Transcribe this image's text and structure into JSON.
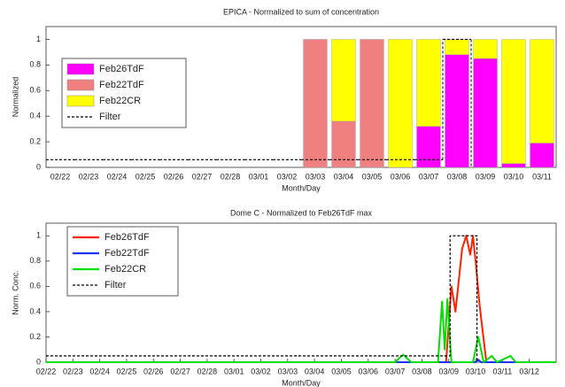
{
  "chart_data": [
    {
      "type": "bar",
      "stacked": true,
      "title": "EPICA - Normalized to sum of concentration",
      "xlabel": "Month/Day",
      "ylabel": "Normalized",
      "categories": [
        "02/22",
        "02/23",
        "02/24",
        "02/25",
        "02/26",
        "02/27",
        "02/28",
        "03/01",
        "03/02",
        "03/03",
        "03/04",
        "03/05",
        "03/06",
        "03/07",
        "03/08",
        "03/09",
        "03/10",
        "03/11"
      ],
      "series": [
        {
          "name": "Feb26TdF",
          "color": "#ff00ff",
          "values": [
            0,
            0,
            0,
            0,
            0,
            0,
            0,
            0,
            0,
            0,
            0,
            0,
            0,
            0.32,
            0.88,
            0.85,
            0.03,
            0.19
          ]
        },
        {
          "name": "Feb22TdF",
          "color": "#f08080",
          "values": [
            0,
            0,
            0,
            0,
            0,
            0,
            0,
            0,
            0,
            1,
            0.36,
            1,
            0,
            0,
            0,
            0,
            0,
            0
          ]
        },
        {
          "name": "Feb22CR",
          "color": "#ffff00",
          "values": [
            0,
            0,
            0,
            0,
            0,
            0,
            0,
            0,
            0,
            0,
            0.64,
            0,
            1,
            0.68,
            0.12,
            0.15,
            0.97,
            0.81
          ]
        }
      ],
      "filter": {
        "name": "Filter",
        "color": "#000000",
        "values": [
          0.06,
          0.06,
          0.06,
          0.06,
          0.06,
          0.06,
          0.06,
          0.06,
          0.06,
          0.06,
          0.06,
          0.06,
          0.06,
          0.06,
          1,
          null,
          null,
          null
        ]
      },
      "ylim": [
        0,
        1.1
      ],
      "yticks": [
        0,
        0.2,
        0.4,
        0.6,
        0.8,
        1
      ],
      "grid": false,
      "legend": "upper left"
    },
    {
      "type": "line",
      "title": "Dome C - Normalized to Feb26TdF max",
      "xlabel": "Month/Day",
      "ylabel": "Norm. Conc.",
      "xlim": [
        0,
        19
      ],
      "xticks": [
        {
          "value": 0,
          "label": "02/22"
        },
        {
          "value": 1,
          "label": "02/23"
        },
        {
          "value": 2,
          "label": "02/24"
        },
        {
          "value": 3,
          "label": "02/25"
        },
        {
          "value": 4,
          "label": "02/26"
        },
        {
          "value": 5,
          "label": "02/27"
        },
        {
          "value": 6,
          "label": "02/28"
        },
        {
          "value": 7,
          "label": "03/01"
        },
        {
          "value": 8,
          "label": "03/02"
        },
        {
          "value": 9,
          "label": "03/03"
        },
        {
          "value": 10,
          "label": "03/04"
        },
        {
          "value": 11,
          "label": "03/05"
        },
        {
          "value": 12,
          "label": "03/06"
        },
        {
          "value": 13,
          "label": "03/07"
        },
        {
          "value": 14,
          "label": "03/08"
        },
        {
          "value": 15,
          "label": "03/09"
        },
        {
          "value": 16,
          "label": "03/10"
        },
        {
          "value": 17,
          "label": "03/11"
        },
        {
          "value": 18,
          "label": "03/12"
        }
      ],
      "series": [
        {
          "name": "Feb26TdF",
          "color": "#ff2000",
          "x": [
            0,
            14.9,
            15.0,
            15.1,
            15.25,
            15.4,
            15.5,
            15.65,
            15.8,
            15.9,
            16.0,
            16.15,
            16.4,
            19
          ],
          "values": [
            0,
            0,
            0.3,
            0.6,
            0.4,
            0.7,
            0.9,
            1.0,
            0.85,
            1.0,
            0.8,
            0.45,
            0,
            0
          ]
        },
        {
          "name": "Feb22TdF",
          "color": "#2030ff",
          "x": [
            0,
            16.0,
            16.1,
            16.2,
            19
          ],
          "values": [
            0,
            0,
            0.02,
            0,
            0
          ]
        },
        {
          "name": "Feb22CR",
          "color": "#00e000",
          "x": [
            0,
            13.0,
            13.3,
            13.6,
            14.6,
            14.75,
            14.85,
            14.95,
            15.1,
            15.9,
            16.1,
            16.3,
            16.6,
            16.8,
            17.3,
            17.5,
            19
          ],
          "values": [
            0,
            0,
            0.06,
            0,
            0,
            0.48,
            0.1,
            0.5,
            0,
            0,
            0.2,
            0,
            0.05,
            0,
            0.05,
            0,
            0
          ]
        },
        {
          "name": "Filter",
          "color": "#000000",
          "dashed": true,
          "x": [
            0,
            15.05,
            15.05,
            16.05,
            16.05
          ],
          "values": [
            0.05,
            0.05,
            1,
            1,
            0
          ]
        }
      ],
      "ylim": [
        0,
        1.1
      ],
      "yticks": [
        0,
        0.2,
        0.4,
        0.6,
        0.8,
        1
      ],
      "grid": false,
      "legend": "upper left"
    }
  ]
}
